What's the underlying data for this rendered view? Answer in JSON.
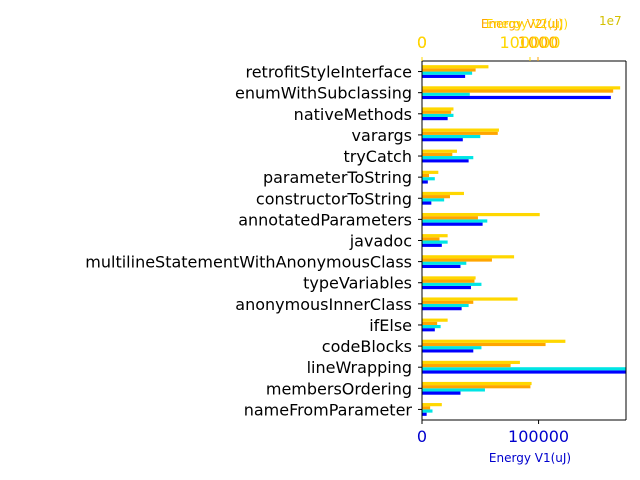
{
  "chart_data": {
    "type": "bar",
    "orientation": "horizontal",
    "categories": [
      "retrofitStyleInterface",
      "enumWithSubclassing",
      "nativeMethods",
      "varargs",
      "tryCatch",
      "parameterToString",
      "constructorToString",
      "annotatedParameters",
      "javadoc",
      "multilineStatementWithAnonymousClass",
      "typeVariables",
      "anonymousInnerClass",
      "ifElse",
      "codeBlocks",
      "lineWrapping",
      "membersOrdering",
      "nameFromParameter"
    ],
    "series": [
      {
        "color": "#0000ff",
        "values": [
          37000,
          162000,
          22000,
          35000,
          40000,
          5000,
          8000,
          52000,
          17000,
          33000,
          42000,
          34000,
          11000,
          44000,
          175000,
          33000,
          4000
        ]
      },
      {
        "color": "#00e5e5",
        "values": [
          43000,
          41000,
          27000,
          50000,
          44000,
          11000,
          19000,
          56000,
          22000,
          38000,
          51000,
          40000,
          16000,
          51000,
          175000,
          54000,
          9000
        ]
      },
      {
        "color": "#ffa500",
        "values": [
          46000,
          164000,
          25000,
          65000,
          26000,
          6000,
          24000,
          48000,
          15000,
          60000,
          45000,
          44000,
          13000,
          106000,
          76000,
          93000,
          7000
        ]
      },
      {
        "color": "#ffd700",
        "values": [
          57000,
          170000,
          27000,
          66000,
          30000,
          14000,
          36000,
          101000,
          22000,
          79000,
          46000,
          82000,
          22000,
          123000,
          84000,
          94000,
          17000
        ]
      }
    ],
    "xlabel": "Energy V1(uJ)",
    "xlim": [
      0,
      175000
    ],
    "xticks": [
      "0",
      "100000"
    ],
    "top_axes": [
      {
        "label": "Energy V2(uJ)",
        "color": "#ffa500",
        "ticks": [
          "0",
          "1000"
        ]
      },
      {
        "label": "Energy V2(uJ)",
        "color": "#ffd700",
        "ticks": [
          "0",
          "100000"
        ]
      }
    ],
    "top_offset": "1e7",
    "grid": false
  }
}
